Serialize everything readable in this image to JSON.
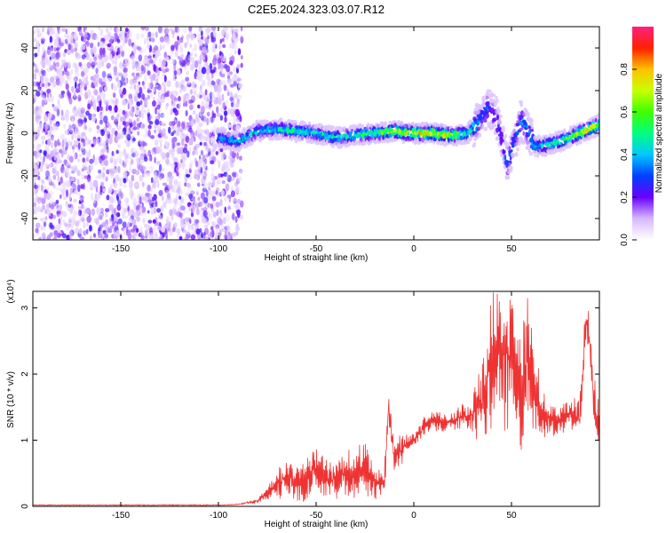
{
  "figure": {
    "title": "C2E5.2024.323.03.07.R12"
  },
  "chart_data": [
    {
      "type": "heatmap",
      "xlabel": "Height of straight line (km)",
      "ylabel": "Frequency (Hz)",
      "xlim": [
        -195,
        95
      ],
      "ylim": [
        -50,
        50
      ],
      "xticks": [
        -150,
        -100,
        -50,
        0,
        50
      ],
      "yticks": [
        -40,
        -20,
        0,
        20,
        40
      ],
      "colorbar": {
        "label": "Normalized spectral amplitude",
        "range": [
          0,
          1
        ],
        "ticks": [
          0.0,
          0.2,
          0.4,
          0.6,
          0.8
        ]
      },
      "ridge": {
        "x": [
          -100,
          -90,
          -80,
          -70,
          -60,
          -50,
          -40,
          -30,
          -20,
          -10,
          0,
          10,
          20,
          28,
          34,
          38,
          42,
          46,
          48,
          50,
          55,
          58,
          62,
          66,
          70,
          75,
          80,
          85,
          90,
          95
        ],
        "y": [
          -2,
          -4,
          1,
          2,
          1,
          0,
          -2,
          -1,
          0,
          1,
          0,
          0,
          -1,
          0,
          6,
          12,
          8,
          -6,
          -14,
          -8,
          6,
          2,
          -6,
          -6,
          -5,
          -4,
          -2,
          0,
          2,
          4
        ],
        "amplitude": [
          0.35,
          0.4,
          0.45,
          0.45,
          0.5,
          0.45,
          0.45,
          0.5,
          0.55,
          0.65,
          0.75,
          0.75,
          0.65,
          0.5,
          0.3,
          0.3,
          0.25,
          0.25,
          0.35,
          0.3,
          0.35,
          0.35,
          0.4,
          0.45,
          0.5,
          0.55,
          0.6,
          0.7,
          0.75,
          0.7
        ]
      },
      "noise_region": {
        "xrange": [
          -195,
          -88
        ],
        "yrange": [
          -50,
          50
        ],
        "amplitude": [
          0.05,
          0.25
        ]
      }
    },
    {
      "type": "line",
      "xlabel": "Height of straight line (km)",
      "ylabel": "SNR (10 * v/v)",
      "scale_label": "(x10⁴)",
      "xlim": [
        -195,
        95
      ],
      "ylim": [
        0,
        3.25
      ],
      "xticks": [
        -150,
        -100,
        -50,
        0,
        50
      ],
      "yticks": [
        0,
        1,
        2,
        3
      ],
      "color": "#ee3333",
      "series": [
        {
          "x": [
            -195,
            -150,
            -100,
            -90,
            -80,
            -75,
            -70,
            -65,
            -60,
            -55,
            -50,
            -45,
            -40,
            -35,
            -30,
            -25,
            -20,
            -15,
            -13,
            -10,
            -5,
            0,
            5,
            10,
            15,
            20,
            25,
            30,
            35,
            38,
            40,
            42,
            45,
            48,
            50,
            52,
            55,
            58,
            60,
            63,
            65,
            70,
            75,
            80,
            85,
            88,
            90,
            92,
            95
          ],
          "y": [
            0.02,
            0.02,
            0.02,
            0.03,
            0.08,
            0.2,
            0.35,
            0.45,
            0.35,
            0.4,
            0.55,
            0.45,
            0.4,
            0.45,
            0.5,
            0.55,
            0.4,
            0.35,
            1.5,
            0.7,
            0.9,
            1.0,
            1.2,
            1.3,
            1.25,
            1.3,
            1.35,
            1.4,
            1.6,
            1.9,
            2.2,
            2.4,
            2.3,
            2.1,
            2.5,
            2.0,
            1.6,
            2.2,
            2.0,
            1.7,
            1.4,
            1.3,
            1.3,
            1.4,
            1.3,
            2.8,
            2.5,
            1.6,
            1.2
          ],
          "spread": [
            0,
            0,
            0,
            0,
            0.03,
            0.1,
            0.2,
            0.3,
            0.25,
            0.3,
            0.35,
            0.3,
            0.3,
            0.35,
            0.35,
            0.4,
            0.3,
            0.25,
            0.2,
            0.25,
            0.2,
            0.1,
            0.15,
            0.15,
            0.15,
            0.15,
            0.2,
            0.3,
            0.6,
            0.9,
            1.1,
            1.1,
            1.0,
            1.1,
            1.1,
            1.0,
            0.9,
            1.0,
            0.9,
            0.7,
            0.4,
            0.2,
            0.2,
            0.2,
            0.3,
            0.3,
            0.4,
            0.4,
            0.3
          ]
        }
      ]
    }
  ]
}
